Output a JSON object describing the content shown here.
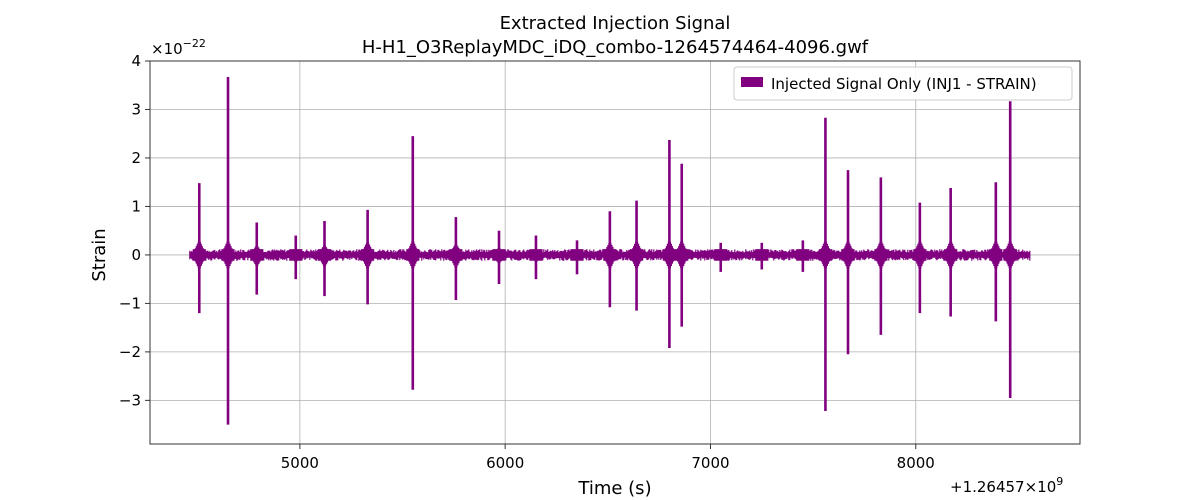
{
  "chart_data": {
    "type": "line",
    "title": "Extracted Injection Signal",
    "subtitle": "H-H1_O3ReplayMDC_iDQ_combo-1264574464-4096.gwf",
    "xlabel": "Time (s)",
    "ylabel": "Strain",
    "x_offset_label": "+1.26457×10",
    "x_offset_exp": "9",
    "y_multiplier_label": "×10",
    "y_multiplier_exp": "−22",
    "xlim": [
      4270,
      8800
    ],
    "ylim": [
      -3.9,
      4.0
    ],
    "xticks": [
      5000,
      6000,
      7000,
      8000
    ],
    "xtick_labels": [
      "5000",
      "6000",
      "7000",
      "8000"
    ],
    "yticks": [
      -3,
      -2,
      -1,
      0,
      1,
      2,
      3,
      4
    ],
    "ytick_labels": [
      "−3",
      "−2",
      "−1",
      "0",
      "1",
      "2",
      "3",
      "4"
    ],
    "grid": true,
    "legend_position": "top-right",
    "series": [
      {
        "name": "Injected Signal Only (INJ1 - STRAIN)",
        "color": "#800080",
        "x_range": [
          4464,
          8560
        ],
        "baseline_amplitude": 0.12,
        "spikes": [
          {
            "x": 4510,
            "max": 1.48,
            "min": -1.2
          },
          {
            "x": 4650,
            "max": 3.67,
            "min": -3.5
          },
          {
            "x": 4790,
            "max": 0.67,
            "min": -0.82
          },
          {
            "x": 4980,
            "max": 0.4,
            "min": -0.5
          },
          {
            "x": 5120,
            "max": 0.7,
            "min": -0.85
          },
          {
            "x": 5330,
            "max": 0.93,
            "min": -1.02
          },
          {
            "x": 5550,
            "max": 2.45,
            "min": -2.78
          },
          {
            "x": 5760,
            "max": 0.78,
            "min": -0.93
          },
          {
            "x": 5970,
            "max": 0.5,
            "min": -0.6
          },
          {
            "x": 6150,
            "max": 0.4,
            "min": -0.5
          },
          {
            "x": 6350,
            "max": 0.3,
            "min": -0.4
          },
          {
            "x": 6510,
            "max": 0.9,
            "min": -1.08
          },
          {
            "x": 6640,
            "max": 1.12,
            "min": -1.15
          },
          {
            "x": 6800,
            "max": 2.37,
            "min": -1.92
          },
          {
            "x": 6860,
            "max": 1.88,
            "min": -1.48
          },
          {
            "x": 7050,
            "max": 0.25,
            "min": -0.35
          },
          {
            "x": 7250,
            "max": 0.25,
            "min": -0.3
          },
          {
            "x": 7450,
            "max": 0.3,
            "min": -0.35
          },
          {
            "x": 7560,
            "max": 2.83,
            "min": -3.22
          },
          {
            "x": 7670,
            "max": 1.75,
            "min": -2.05
          },
          {
            "x": 7830,
            "max": 1.6,
            "min": -1.65
          },
          {
            "x": 8020,
            "max": 1.08,
            "min": -1.2
          },
          {
            "x": 8170,
            "max": 1.38,
            "min": -1.27
          },
          {
            "x": 8390,
            "max": 1.5,
            "min": -1.37
          },
          {
            "x": 8460,
            "max": 3.17,
            "min": -2.95
          }
        ]
      }
    ]
  }
}
